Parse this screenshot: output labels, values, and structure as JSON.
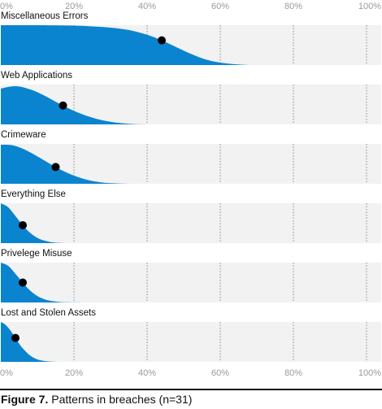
{
  "chart_data": {
    "type": "area",
    "subtype": "density ridgeline",
    "x_ticks": [
      "0%",
      "20%",
      "40%",
      "60%",
      "80%",
      "100%"
    ],
    "xlim": [
      0,
      100
    ],
    "grid": true,
    "colors": {
      "fill": "#0a84cf",
      "panel": "#f2f2f2",
      "marker": "#000000",
      "grid": "#888888"
    },
    "series": [
      {
        "name": "Miscellaneous Errors",
        "marker": 44,
        "x": [
          0,
          10,
          20,
          25,
          30,
          35,
          40,
          44,
          48,
          52,
          56,
          60,
          64,
          68
        ],
        "y": [
          1.0,
          1.0,
          0.99,
          0.97,
          0.94,
          0.88,
          0.76,
          0.62,
          0.45,
          0.28,
          0.14,
          0.06,
          0.02,
          0
        ]
      },
      {
        "name": "Web Applications",
        "marker": 17,
        "x": [
          0,
          4,
          8,
          12,
          16,
          20,
          24,
          28,
          32,
          36,
          40
        ],
        "y": [
          0.9,
          0.96,
          0.88,
          0.72,
          0.52,
          0.34,
          0.2,
          0.1,
          0.04,
          0.01,
          0
        ]
      },
      {
        "name": "Crimeware",
        "marker": 15,
        "x": [
          0,
          3,
          6,
          9,
          12,
          15,
          18,
          21,
          24,
          27,
          30,
          35
        ],
        "y": [
          0.98,
          0.97,
          0.88,
          0.74,
          0.58,
          0.42,
          0.28,
          0.17,
          0.09,
          0.04,
          0.015,
          0
        ]
      },
      {
        "name": "Everything Else",
        "marker": 6,
        "x": [
          0,
          2,
          4,
          6,
          8,
          10,
          12,
          14,
          16,
          18
        ],
        "y": [
          1.0,
          0.9,
          0.68,
          0.45,
          0.26,
          0.13,
          0.06,
          0.02,
          0.005,
          0
        ]
      },
      {
        "name": "Privelege Misuse",
        "marker": 6,
        "x": [
          0,
          2,
          4,
          6,
          8,
          10,
          12,
          14,
          16,
          18,
          22
        ],
        "y": [
          1.0,
          0.92,
          0.72,
          0.5,
          0.3,
          0.16,
          0.08,
          0.035,
          0.012,
          0.004,
          0
        ]
      },
      {
        "name": "Lost and Stolen Assets",
        "marker": 4,
        "x": [
          0,
          1,
          2,
          3,
          4,
          5,
          6,
          8,
          10,
          12,
          14,
          16
        ],
        "y": [
          1.0,
          0.95,
          0.86,
          0.74,
          0.6,
          0.46,
          0.34,
          0.16,
          0.06,
          0.02,
          0.005,
          0
        ]
      }
    ]
  },
  "caption": {
    "label": "Figure 7.",
    "text": " Patterns in breaches (n=31)"
  }
}
